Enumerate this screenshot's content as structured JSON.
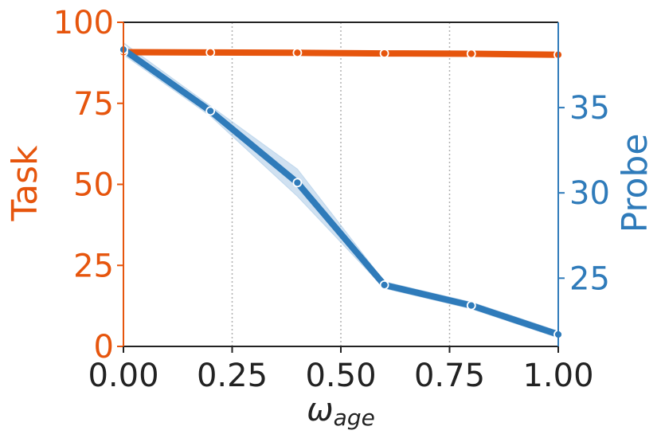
{
  "chart_data": {
    "type": "line",
    "x": [
      0.0,
      0.2,
      0.4,
      0.6,
      0.8,
      1.0
    ],
    "xlim": [
      0.0,
      1.0
    ],
    "xticks": [
      0.0,
      0.25,
      0.5,
      0.75,
      1.0
    ],
    "xtick_labels": [
      "0.00",
      "0.25",
      "0.50",
      "0.75",
      "1.00"
    ],
    "xlabel_main": "ω",
    "xlabel_sub": "age",
    "grid": "vertical dotted at x ticks",
    "left_axis": {
      "label": "Task",
      "color": "#E6550D",
      "ylim": [
        0,
        100
      ],
      "ticks": [
        0,
        25,
        50,
        75,
        100
      ],
      "tick_labels": [
        "0",
        "25",
        "50",
        "75",
        "100"
      ]
    },
    "right_axis": {
      "label": "Probe",
      "color": "#2F7BBA",
      "ylim": [
        21,
        40
      ],
      "ticks": [
        25,
        30,
        35
      ],
      "tick_labels": [
        "25",
        "30",
        "35"
      ]
    },
    "series": [
      {
        "axis": "left",
        "color": "#E6550D",
        "values": [
          90.8,
          90.7,
          90.6,
          90.4,
          90.3,
          90.0
        ],
        "band_low": [
          90.5,
          90.5,
          90.4,
          90.2,
          90.1,
          89.8
        ],
        "band_high": [
          91.1,
          90.9,
          90.8,
          90.6,
          90.5,
          90.2
        ]
      },
      {
        "axis": "right",
        "color": "#2F7BBA",
        "band_color": "#A9C9E6",
        "values": [
          38.4,
          34.8,
          30.6,
          24.6,
          23.4,
          21.7
        ],
        "band_low": [
          38.1,
          34.5,
          29.8,
          24.4,
          23.2,
          21.5
        ],
        "band_high": [
          38.8,
          35.1,
          31.4,
          24.8,
          23.6,
          21.9
        ]
      }
    ]
  }
}
